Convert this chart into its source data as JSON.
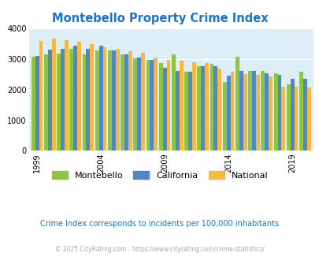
{
  "title": "Montebello Property Crime Index",
  "title_color": "#1874cd",
  "years": [
    1999,
    2000,
    2001,
    2002,
    2003,
    2004,
    2005,
    2006,
    2007,
    2008,
    2009,
    2010,
    2011,
    2012,
    2013,
    2014,
    2015,
    2016,
    2017,
    2018,
    2019,
    2020
  ],
  "montebello": [
    3080,
    3150,
    3170,
    3340,
    3150,
    3290,
    3280,
    3150,
    3040,
    2980,
    2870,
    3160,
    2580,
    2760,
    2840,
    2260,
    3080,
    2620,
    2610,
    2550,
    2170,
    2590
  ],
  "california": [
    3100,
    3300,
    3330,
    3430,
    3350,
    3430,
    3280,
    3150,
    3050,
    2970,
    2720,
    2620,
    2590,
    2760,
    2780,
    2450,
    2610,
    2620,
    2530,
    2490,
    2370,
    2360
  ],
  "national": [
    3600,
    3660,
    3620,
    3560,
    3480,
    3400,
    3330,
    3260,
    3200,
    3050,
    2970,
    2950,
    2890,
    2870,
    2690,
    2590,
    2520,
    2490,
    2440,
    2100,
    2090,
    2080
  ],
  "colors": {
    "montebello": "#8dc540",
    "california": "#4f88c6",
    "national": "#f5b942"
  },
  "ylim": [
    0,
    4000
  ],
  "yticks": [
    0,
    1000,
    2000,
    3000,
    4000
  ],
  "xtick_years": [
    1999,
    2004,
    2009,
    2014,
    2019
  ],
  "background_color": "#ddeef6",
  "legend_labels": [
    "Montebello",
    "California",
    "National"
  ],
  "footnote1": "Crime Index corresponds to incidents per 100,000 inhabitants",
  "footnote2": "© 2025 CityRating.com - https://www.cityrating.com/crime-statistics/",
  "footnote1_color": "#1874cd",
  "footnote2_color": "#aaaaaa"
}
